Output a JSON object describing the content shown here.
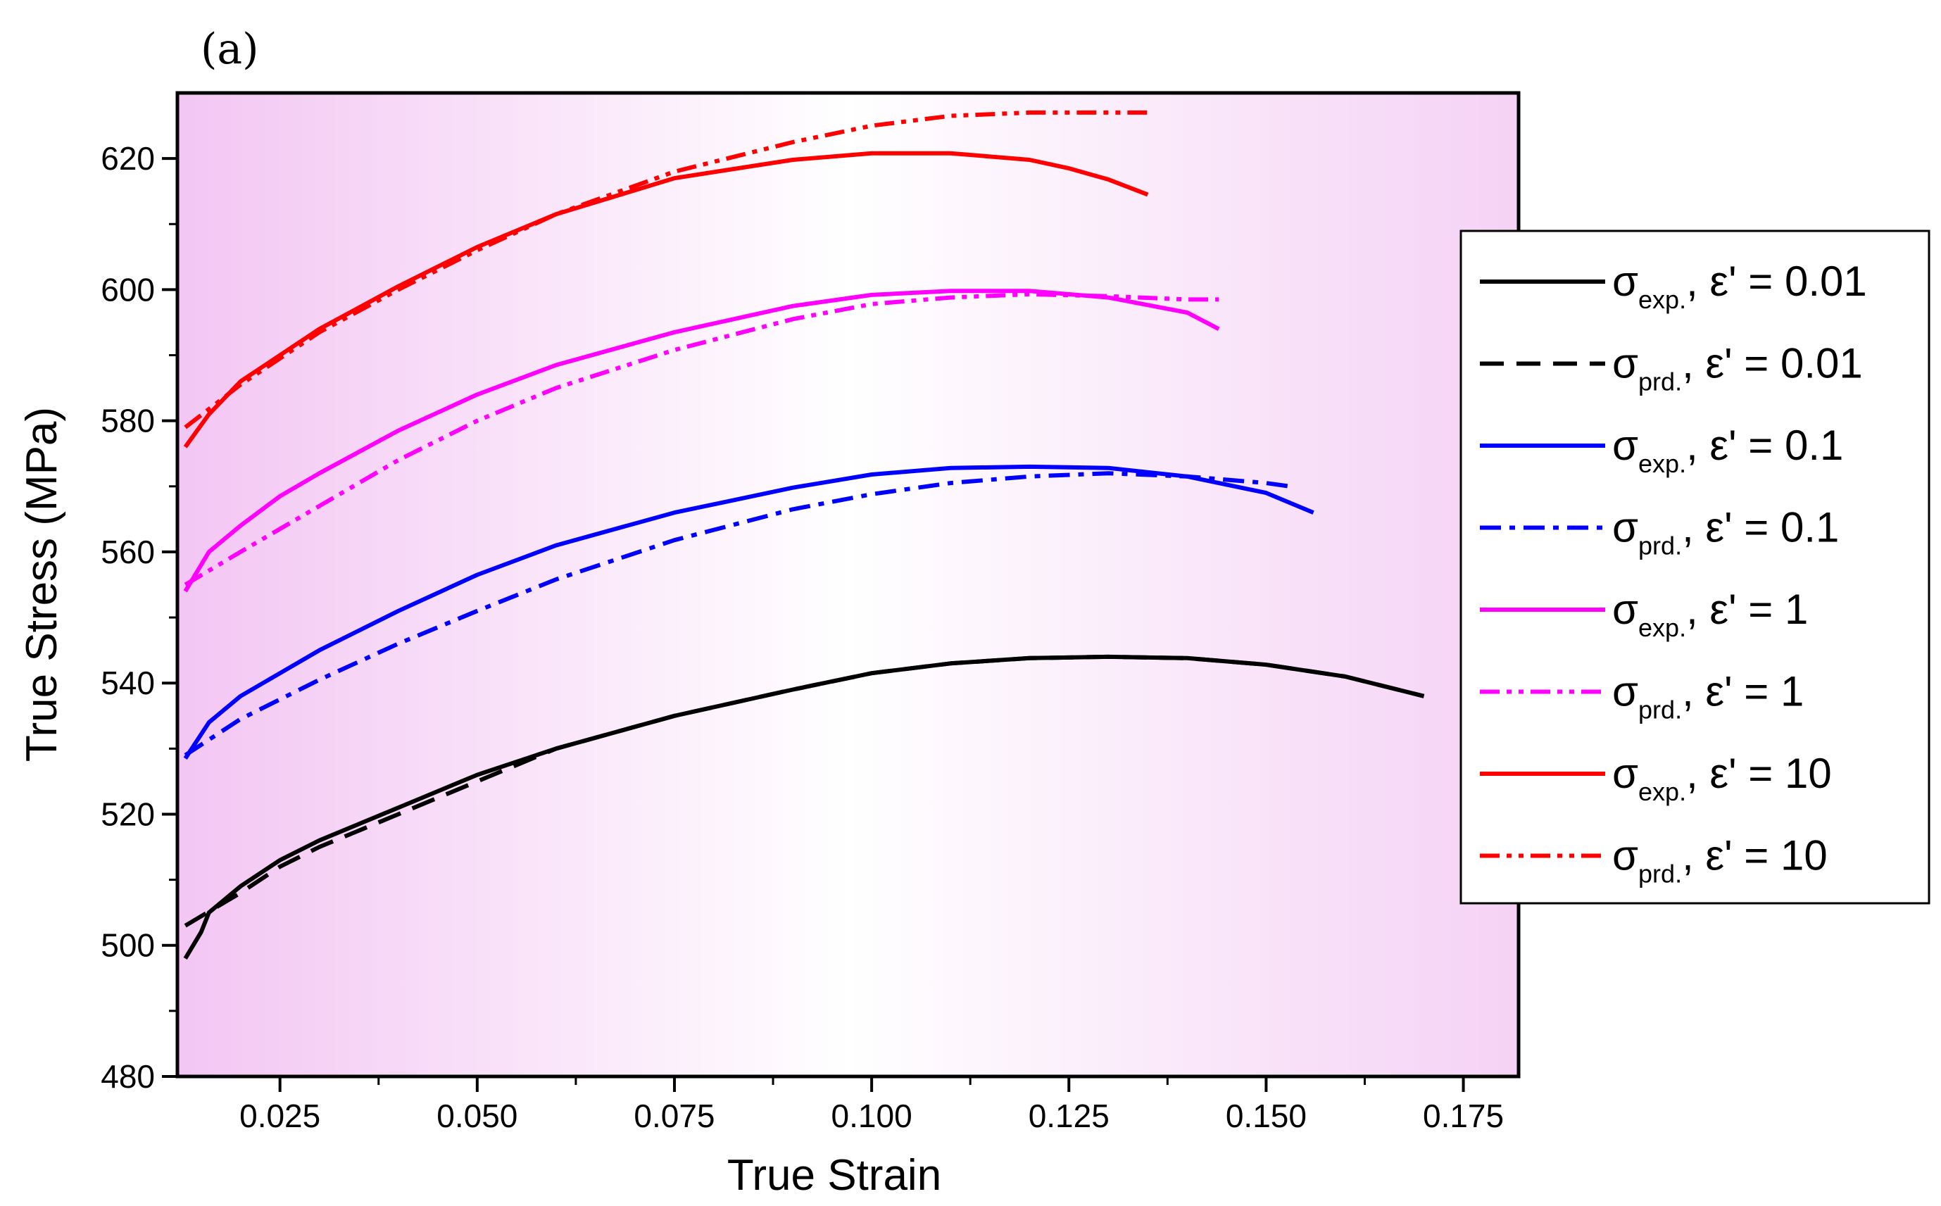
{
  "chart_data": {
    "type": "line",
    "panel_label": "(a)",
    "xlabel": "True Strain",
    "ylabel": "True Stress (MPa)",
    "xlim": [
      0.012,
      0.182
    ],
    "ylim": [
      480,
      630
    ],
    "xticks": [
      0.025,
      0.05,
      0.075,
      0.1,
      0.125,
      0.15,
      0.175
    ],
    "xtick_labels": [
      "0.025",
      "0.050",
      "0.075",
      "0.100",
      "0.125",
      "0.150",
      "0.175"
    ],
    "yticks": [
      480,
      500,
      520,
      540,
      560,
      580,
      600,
      620
    ],
    "ytick_labels": [
      "480",
      "500",
      "520",
      "540",
      "560",
      "580",
      "600",
      "620"
    ],
    "grid": false,
    "legend_position": "right",
    "background": "pink-to-white gradient",
    "series": [
      {
        "name": "σexp., ε' = 0.01",
        "sym": "σ",
        "sub": "exp.",
        "rate": "ε' = 0.01",
        "color": "#000000",
        "style": "solid",
        "x": [
          0.013,
          0.015,
          0.016,
          0.02,
          0.025,
          0.03,
          0.04,
          0.05,
          0.06,
          0.075,
          0.09,
          0.1,
          0.11,
          0.12,
          0.13,
          0.14,
          0.15,
          0.16,
          0.17
        ],
        "y": [
          498,
          502,
          505,
          509,
          513,
          516,
          521,
          526,
          530,
          535,
          539,
          541.5,
          543,
          543.8,
          544,
          543.8,
          542.8,
          541,
          538
        ]
      },
      {
        "name": "σprd., ε' = 0.01",
        "sym": "σ",
        "sub": "prd.",
        "rate": "ε' = 0.01",
        "color": "#000000",
        "style": "dash",
        "x": [
          0.013,
          0.02,
          0.025,
          0.03,
          0.04,
          0.05,
          0.06,
          0.075,
          0.09,
          0.1,
          0.11,
          0.12,
          0.13,
          0.14,
          0.15,
          0.16,
          0.17
        ],
        "y": [
          503,
          508,
          512,
          515,
          520,
          525,
          530,
          535,
          539,
          541.5,
          543,
          543.8,
          544,
          543.8,
          542.8,
          541,
          538
        ]
      },
      {
        "name": "σexp., ε' = 0.1",
        "sym": "σ",
        "sub": "exp.",
        "rate": "ε' = 0.1",
        "color": "#0000ff",
        "style": "solid",
        "x": [
          0.013,
          0.016,
          0.02,
          0.025,
          0.03,
          0.04,
          0.05,
          0.06,
          0.075,
          0.09,
          0.1,
          0.11,
          0.12,
          0.13,
          0.14,
          0.15,
          0.156
        ],
        "y": [
          528.5,
          534,
          538,
          541.5,
          545,
          551,
          556.5,
          561,
          566,
          569.8,
          571.8,
          572.8,
          573,
          572.8,
          571.5,
          569,
          566
        ]
      },
      {
        "name": "σprd., ε' = 0.1",
        "sym": "σ",
        "sub": "prd.",
        "rate": "ε' = 0.1",
        "color": "#0000ff",
        "style": "dashdot",
        "x": [
          0.013,
          0.02,
          0.03,
          0.04,
          0.05,
          0.06,
          0.075,
          0.09,
          0.1,
          0.11,
          0.12,
          0.13,
          0.14,
          0.15,
          0.153
        ],
        "y": [
          529,
          534.5,
          540.5,
          546,
          551,
          555.8,
          561.8,
          566.5,
          568.8,
          570.5,
          571.5,
          572,
          571.5,
          570.5,
          570
        ]
      },
      {
        "name": "σexp., ε' = 1",
        "sym": "σ",
        "sub": "exp.",
        "rate": "ε' = 1",
        "color": "#ff00ff",
        "style": "solid",
        "x": [
          0.013,
          0.016,
          0.02,
          0.025,
          0.03,
          0.04,
          0.05,
          0.06,
          0.075,
          0.09,
          0.1,
          0.11,
          0.12,
          0.13,
          0.14,
          0.144
        ],
        "y": [
          554,
          560,
          564,
          568.5,
          572,
          578.5,
          584,
          588.5,
          593.5,
          597.5,
          599.2,
          599.8,
          599.8,
          598.8,
          596.5,
          594
        ]
      },
      {
        "name": "σprd., ε' = 1",
        "sym": "σ",
        "sub": "prd.",
        "rate": "ε' = 1",
        "color": "#ff00ff",
        "style": "dashdotdot",
        "x": [
          0.013,
          0.02,
          0.03,
          0.04,
          0.05,
          0.06,
          0.075,
          0.09,
          0.1,
          0.11,
          0.12,
          0.13,
          0.14,
          0.144
        ],
        "y": [
          555,
          560,
          567,
          574,
          580,
          585,
          590.8,
          595.5,
          597.8,
          598.8,
          599.3,
          599,
          598.5,
          598.5
        ]
      },
      {
        "name": "σexp., ε' = 10",
        "sym": "σ",
        "sub": "exp.",
        "rate": "ε' = 10",
        "color": "#ff0000",
        "style": "solid",
        "x": [
          0.013,
          0.016,
          0.02,
          0.025,
          0.03,
          0.04,
          0.05,
          0.06,
          0.075,
          0.09,
          0.1,
          0.11,
          0.12,
          0.125,
          0.13,
          0.135
        ],
        "y": [
          576,
          581,
          586,
          590,
          594,
          600.5,
          606.5,
          611.5,
          617,
          619.8,
          620.8,
          620.8,
          619.8,
          618.5,
          616.8,
          614.5
        ]
      },
      {
        "name": "σprd., ε' = 10",
        "sym": "σ",
        "sub": "prd.",
        "rate": "ε' = 10",
        "color": "#ff0000",
        "style": "dashdotdot",
        "x": [
          0.013,
          0.02,
          0.03,
          0.04,
          0.05,
          0.06,
          0.075,
          0.09,
          0.1,
          0.11,
          0.12,
          0.13,
          0.135
        ],
        "y": [
          579,
          585.5,
          593.5,
          600,
          606,
          611.5,
          618,
          622.5,
          625,
          626.5,
          627,
          627,
          627
        ]
      }
    ]
  }
}
